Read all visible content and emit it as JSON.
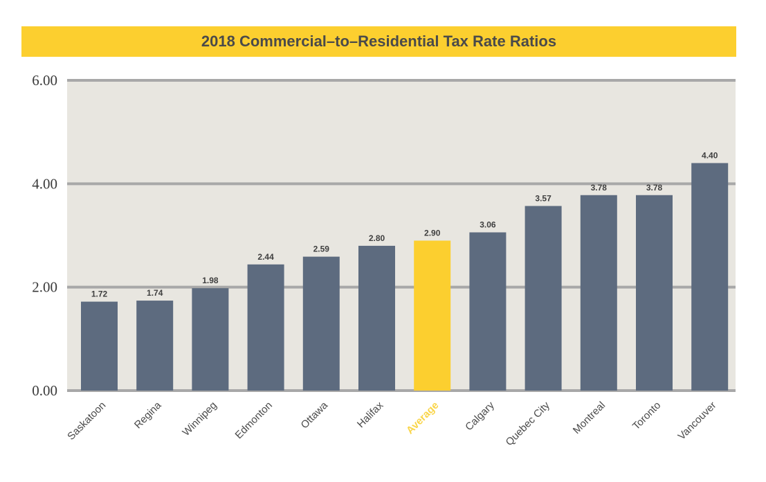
{
  "chart_data": {
    "type": "bar",
    "title": "2018 Commercial–to–Residential Tax Rate Ratios",
    "xlabel": "",
    "ylabel": "",
    "ylim": [
      0,
      6
    ],
    "yticks": [
      "0.00",
      "2.00",
      "4.00",
      "6.00"
    ],
    "grid": true,
    "categories": [
      "Saskatoon",
      "Regina",
      "Winnipeg",
      "Edmonton",
      "Ottawa",
      "Halifax",
      "Average",
      "Calgary",
      "Quebec City",
      "Montreal",
      "Toronto",
      "Vancouver"
    ],
    "values": [
      1.72,
      1.74,
      1.98,
      2.44,
      2.59,
      2.8,
      2.9,
      3.06,
      3.57,
      3.78,
      3.78,
      4.4
    ],
    "value_labels": [
      "1.72",
      "1.74",
      "1.98",
      "2.44",
      "2.59",
      "2.80",
      "2.90",
      "3.06",
      "3.57",
      "3.78",
      "3.78",
      "4.40"
    ],
    "highlight_category": "Average"
  },
  "colors": {
    "title_bg": "#fccf2f",
    "title_text": "#4a4a4a",
    "plot_bg": "#e8e6e0",
    "grid": "#a8a8a8",
    "bar": "#5d6b7f",
    "bar_highlight": "#fccf2f",
    "category_text": "#4a4a4a",
    "category_highlight_text": "#f9d54a"
  }
}
